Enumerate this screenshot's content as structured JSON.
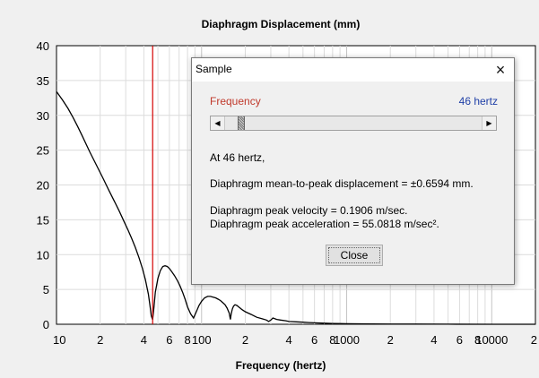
{
  "chart_data": {
    "type": "line",
    "title": "Diaphragm Displacement (mm)",
    "xlabel": "Frequency (hertz)",
    "ylabel": "",
    "xscale": "log",
    "xlim": [
      10,
      20000
    ],
    "ylim": [
      0,
      40
    ],
    "y_ticks": [
      0,
      5,
      10,
      15,
      20,
      25,
      30,
      35,
      40
    ],
    "x_ticks": [
      {
        "value": 10,
        "label": "10"
      },
      {
        "value": 20,
        "label": "2"
      },
      {
        "value": 40,
        "label": "4"
      },
      {
        "value": 60,
        "label": "6"
      },
      {
        "value": 80,
        "label": "8"
      },
      {
        "value": 100,
        "label": "100"
      },
      {
        "value": 200,
        "label": "2"
      },
      {
        "value": 400,
        "label": "4"
      },
      {
        "value": 600,
        "label": "6"
      },
      {
        "value": 800,
        "label": "8"
      },
      {
        "value": 1000,
        "label": "1000"
      },
      {
        "value": 2000,
        "label": "2"
      },
      {
        "value": 4000,
        "label": "4"
      },
      {
        "value": 6000,
        "label": "6"
      },
      {
        "value": 8000,
        "label": "8"
      },
      {
        "value": 10000,
        "label": "10000"
      },
      {
        "value": 20000,
        "label": "2"
      }
    ],
    "cursor_frequency": 46,
    "series": [
      {
        "name": "Diaphragm Displacement",
        "color": "#000000",
        "x": [
          10,
          11,
          12,
          13,
          14,
          15,
          17,
          19,
          21,
          23,
          25,
          27,
          29,
          31,
          33,
          35,
          37,
          39,
          41,
          43,
          44,
          45,
          46,
          47,
          48,
          50,
          52,
          54,
          56,
          58,
          60,
          62,
          65,
          68,
          71,
          74,
          77,
          80,
          84,
          88,
          92,
          96,
          100,
          105,
          110,
          115,
          120,
          125,
          130,
          135,
          140,
          145,
          150,
          155,
          158,
          160,
          163,
          166,
          170,
          175,
          180,
          185,
          190,
          200,
          210,
          220,
          230,
          240,
          260,
          280,
          290,
          300,
          310,
          330,
          350,
          380,
          400,
          450,
          500,
          550,
          600,
          700,
          800,
          1000,
          1500,
          2000,
          3000,
          5000,
          10000,
          20000
        ],
        "y": [
          33.4,
          32.2,
          31.0,
          29.7,
          28.4,
          27.1,
          24.7,
          22.7,
          20.9,
          19.2,
          17.7,
          16.3,
          14.9,
          13.6,
          12.3,
          11.0,
          9.6,
          8.1,
          6.4,
          4.3,
          2.8,
          1.2,
          0.66,
          2.5,
          4.6,
          6.6,
          7.7,
          8.3,
          8.4,
          8.3,
          8.0,
          7.6,
          7.0,
          6.3,
          5.5,
          4.6,
          3.6,
          2.5,
          1.5,
          0.9,
          1.8,
          2.7,
          3.3,
          3.8,
          4.0,
          4.0,
          3.9,
          3.8,
          3.6,
          3.4,
          3.1,
          2.8,
          2.3,
          1.6,
          0.7,
          1.5,
          2.2,
          2.6,
          2.8,
          2.7,
          2.5,
          2.3,
          2.1,
          1.8,
          1.6,
          1.4,
          1.2,
          1.0,
          0.8,
          0.6,
          0.4,
          0.6,
          0.9,
          0.7,
          0.6,
          0.5,
          0.4,
          0.35,
          0.3,
          0.25,
          0.2,
          0.15,
          0.12,
          0.08,
          0.05,
          0.03,
          0.02,
          0.01,
          0.0,
          0.0
        ]
      }
    ]
  },
  "dialog": {
    "title": "Sample",
    "close_icon": "×",
    "frequency_label": "Frequency",
    "frequency_value": "46 hertz",
    "scroll_left_icon": "◀",
    "scroll_right_icon": "▶",
    "slider_value_hz": 46,
    "line_at": "At 46 hertz,",
    "line_displacement": "Diaphragm mean-to-peak displacement = ±0.6594 mm.",
    "line_velocity": "Diaphragm peak velocity = 0.1906 m/sec.",
    "line_acceleration": "Diaphragm peak acceleration = 55.0818 m/sec².",
    "close_button": "Close"
  },
  "colors": {
    "curve": "#000000",
    "cursor": "#d40000",
    "grid": "#dcdcdc",
    "frequency_label": "#c0392b",
    "frequency_value": "#1f3fa6"
  }
}
